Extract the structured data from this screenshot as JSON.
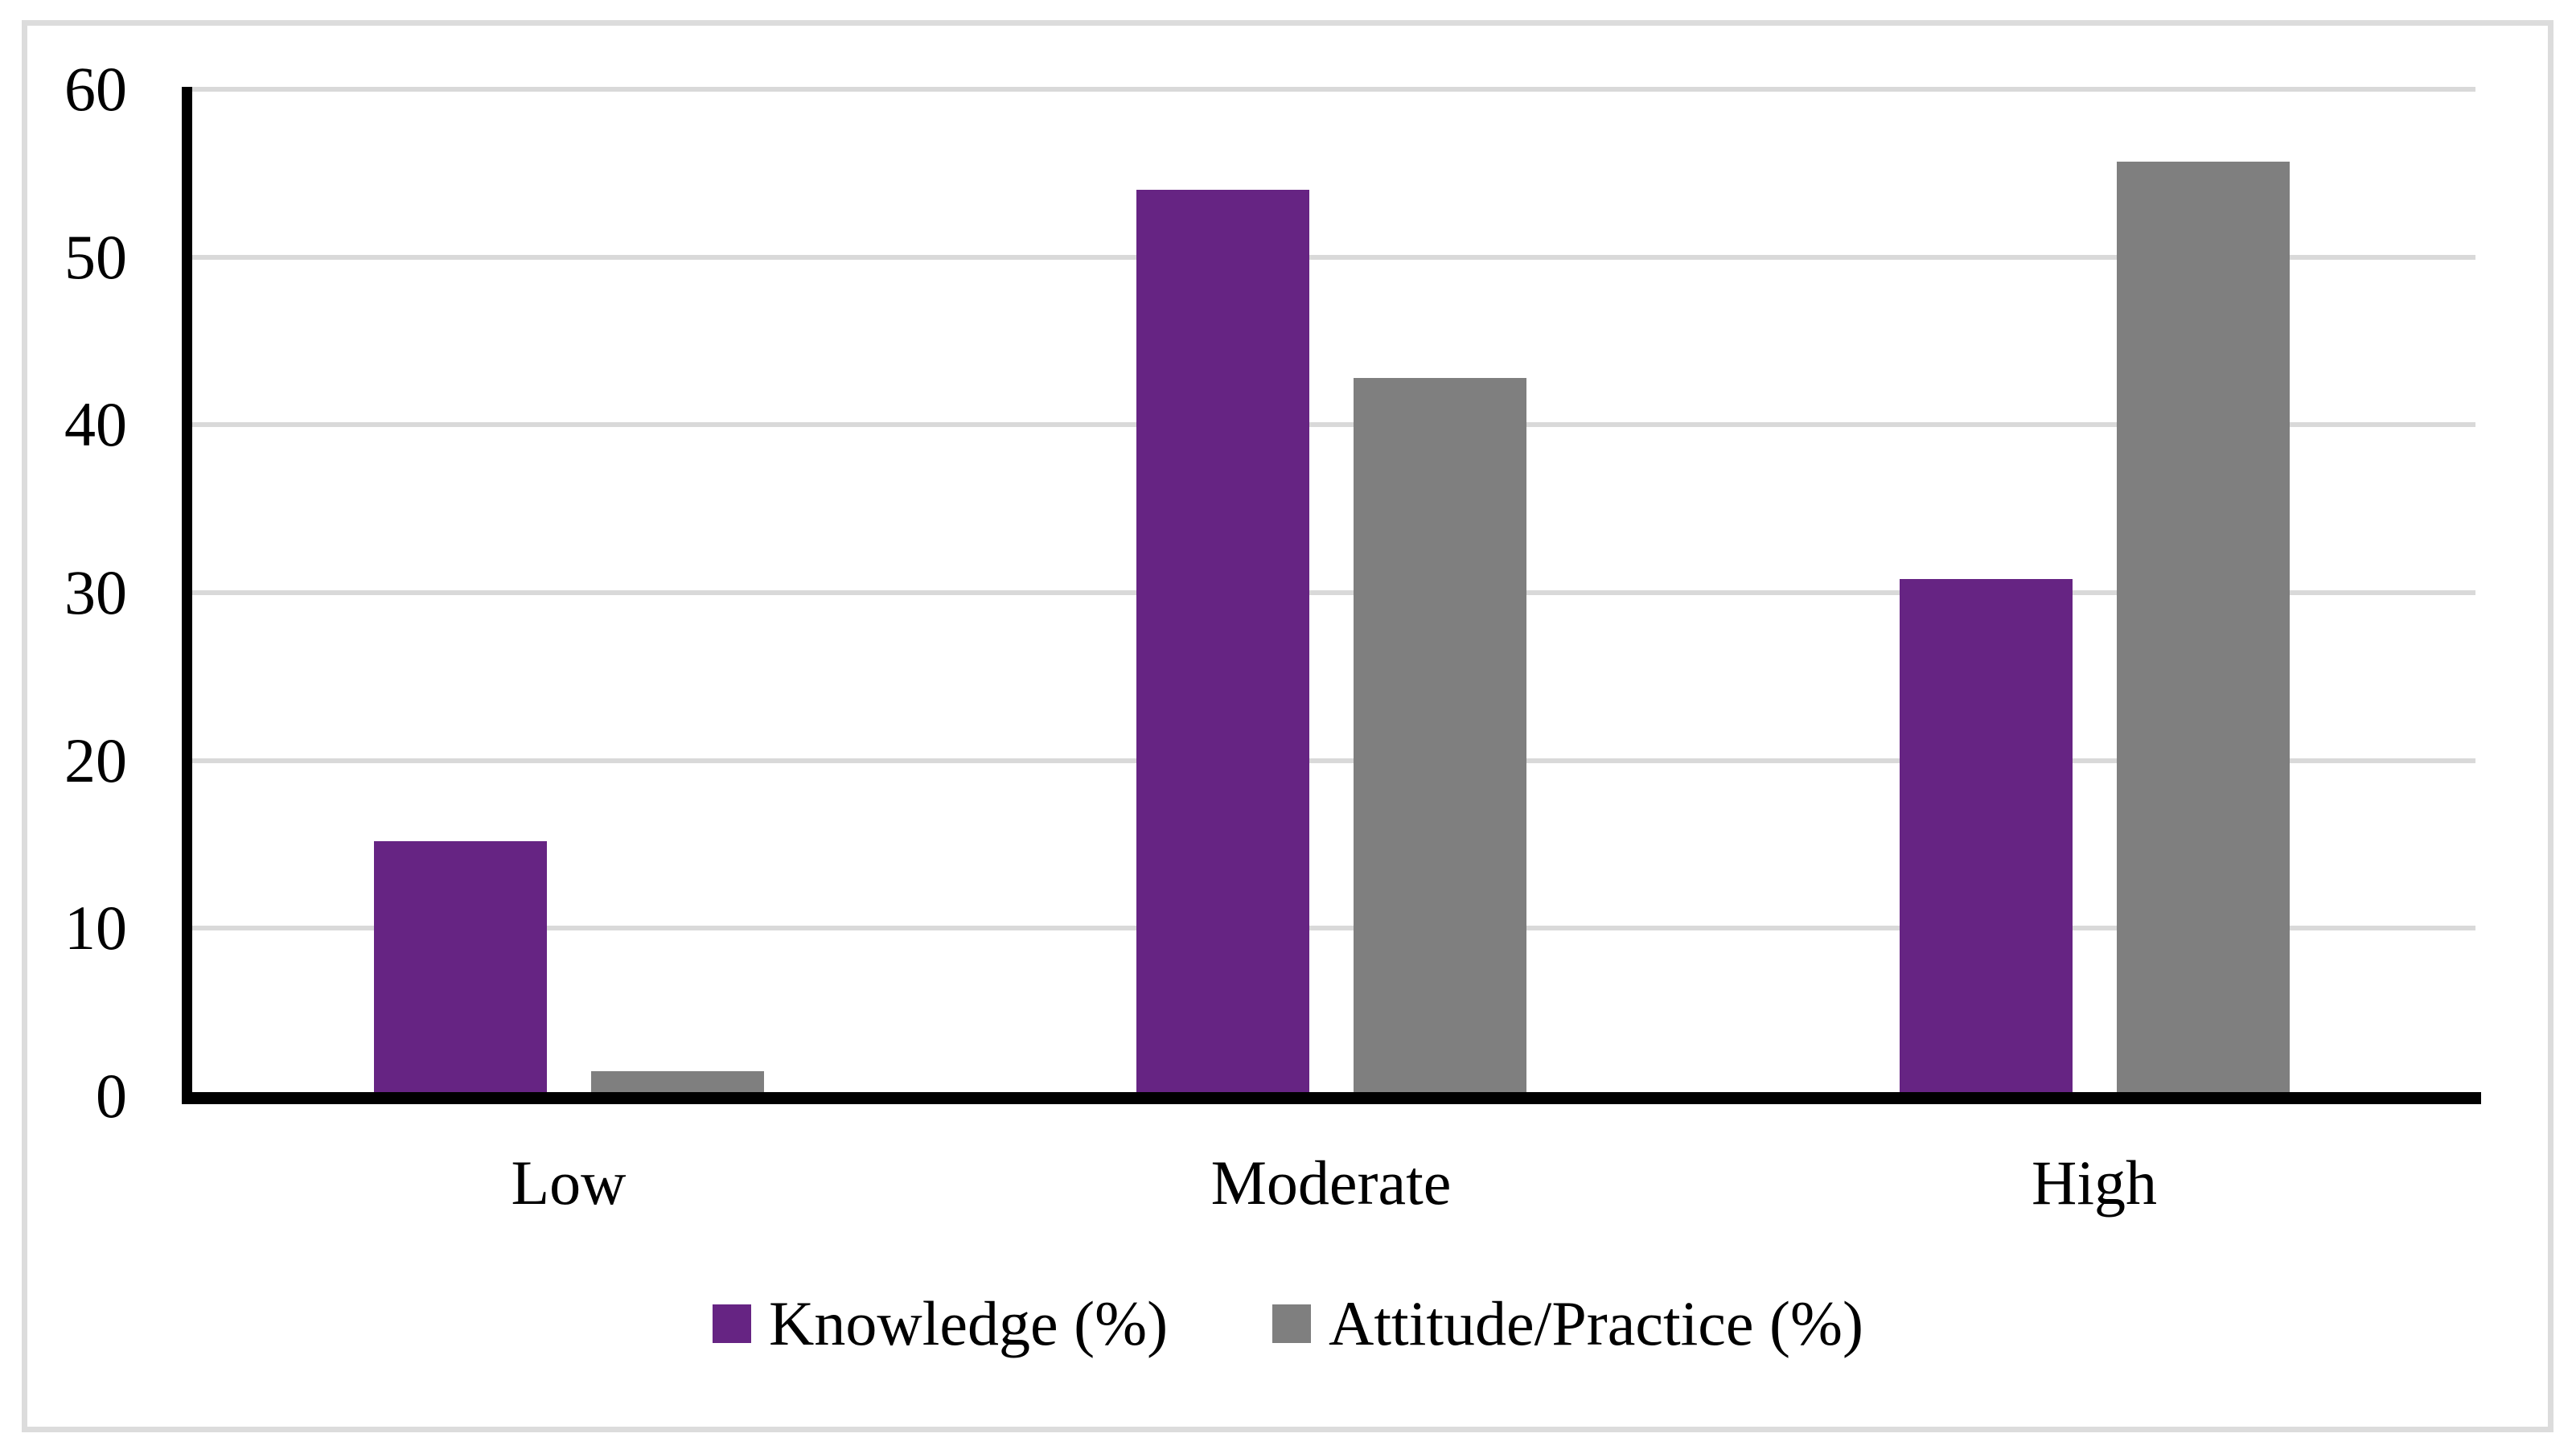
{
  "chart_data": {
    "type": "bar",
    "title": "",
    "xlabel": "",
    "ylabel": "",
    "categories": [
      "Low",
      "Moderate",
      "High"
    ],
    "series": [
      {
        "name": "Knowledge (%)",
        "color": "#662483",
        "values": [
          15.2,
          54.0,
          30.8
        ]
      },
      {
        "name": "Attitude/Practice (%)",
        "color": "#7F7F7F",
        "values": [
          1.5,
          42.8,
          55.7
        ]
      }
    ],
    "ylim": [
      0,
      60
    ],
    "yticks": [
      0,
      10,
      20,
      30,
      40,
      50,
      60
    ],
    "grid": "horizontal-lines",
    "legend_position": "bottom-center"
  },
  "styles": {
    "background": "#FFFFFF",
    "frame_border_color": "#DCDCDC",
    "gridline_color": "#D9D9D9",
    "axis_color": "#000000",
    "text_color": "#000000"
  }
}
